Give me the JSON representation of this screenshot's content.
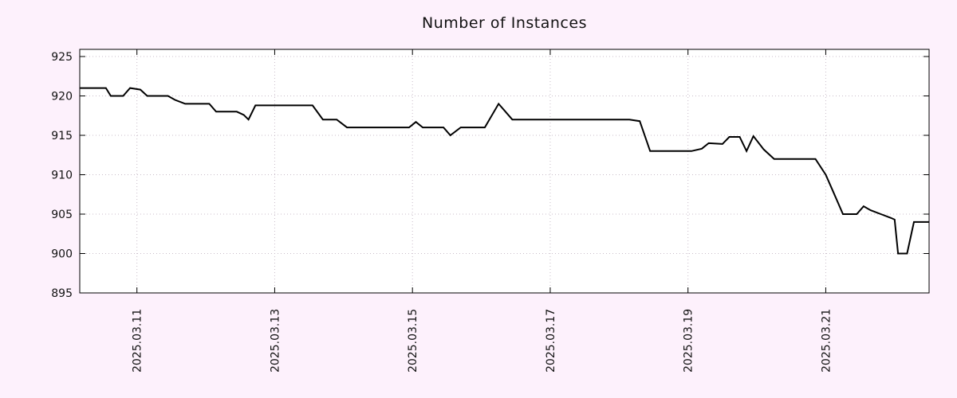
{
  "title": "Number of Instances",
  "colors": {
    "page_background": "#fdf1fc",
    "plot_background": "#ffffff",
    "grid": "#c9bcc9",
    "axis": "#000000",
    "line": "#000000",
    "text": "#121212"
  },
  "chart_data": {
    "type": "line",
    "title": "Number of Instances",
    "xlabel": "",
    "ylabel": "",
    "x_note": "x values are fractional days of March 2025",
    "x_range": [
      10.17,
      22.5
    ],
    "y_range": [
      895,
      925
    ],
    "grid": true,
    "legend": "none",
    "x_ticks": [
      {
        "value": 11,
        "label": "2025.03.11"
      },
      {
        "value": 13,
        "label": "2025.03.13"
      },
      {
        "value": 15,
        "label": "2025.03.15"
      },
      {
        "value": 17,
        "label": "2025.03.17"
      },
      {
        "value": 19,
        "label": "2025.03.19"
      },
      {
        "value": 21,
        "label": "2025.03.21"
      }
    ],
    "y_ticks": [
      {
        "value": 895,
        "label": "895"
      },
      {
        "value": 900,
        "label": "900"
      },
      {
        "value": 905,
        "label": "905"
      },
      {
        "value": 910,
        "label": "910"
      },
      {
        "value": 915,
        "label": "915"
      },
      {
        "value": 920,
        "label": "920"
      },
      {
        "value": 925,
        "label": "925"
      }
    ],
    "series": [
      {
        "name": "instances",
        "points": [
          [
            10.17,
            921
          ],
          [
            10.55,
            921
          ],
          [
            10.62,
            920
          ],
          [
            10.8,
            920
          ],
          [
            10.9,
            921
          ],
          [
            11.05,
            920.8
          ],
          [
            11.15,
            920
          ],
          [
            11.45,
            920
          ],
          [
            11.55,
            919.5
          ],
          [
            11.7,
            919
          ],
          [
            12.05,
            919
          ],
          [
            12.15,
            918
          ],
          [
            12.45,
            918
          ],
          [
            12.55,
            917.6
          ],
          [
            12.62,
            917
          ],
          [
            12.72,
            918.8
          ],
          [
            13.55,
            918.8
          ],
          [
            13.7,
            917
          ],
          [
            13.9,
            917
          ],
          [
            14.05,
            916
          ],
          [
            14.95,
            916
          ],
          [
            15.05,
            916.7
          ],
          [
            15.15,
            916
          ],
          [
            15.45,
            916
          ],
          [
            15.55,
            915
          ],
          [
            15.7,
            916
          ],
          [
            16.05,
            916
          ],
          [
            16.25,
            919
          ],
          [
            16.45,
            917
          ],
          [
            18.15,
            917
          ],
          [
            18.3,
            916.8
          ],
          [
            18.45,
            913
          ],
          [
            19.05,
            913
          ],
          [
            19.2,
            913.3
          ],
          [
            19.3,
            914
          ],
          [
            19.5,
            913.9
          ],
          [
            19.6,
            914.8
          ],
          [
            19.75,
            914.8
          ],
          [
            19.85,
            913
          ],
          [
            19.95,
            914.9
          ],
          [
            20.1,
            913.2
          ],
          [
            20.25,
            912
          ],
          [
            20.85,
            912
          ],
          [
            21.0,
            910
          ],
          [
            21.1,
            908
          ],
          [
            21.25,
            905
          ],
          [
            21.45,
            905
          ],
          [
            21.55,
            906
          ],
          [
            21.65,
            905.5
          ],
          [
            21.8,
            905
          ],
          [
            21.95,
            904.5
          ],
          [
            22.0,
            904.3
          ],
          [
            22.05,
            900
          ],
          [
            22.18,
            900
          ],
          [
            22.28,
            904
          ],
          [
            22.5,
            904
          ]
        ]
      }
    ]
  }
}
